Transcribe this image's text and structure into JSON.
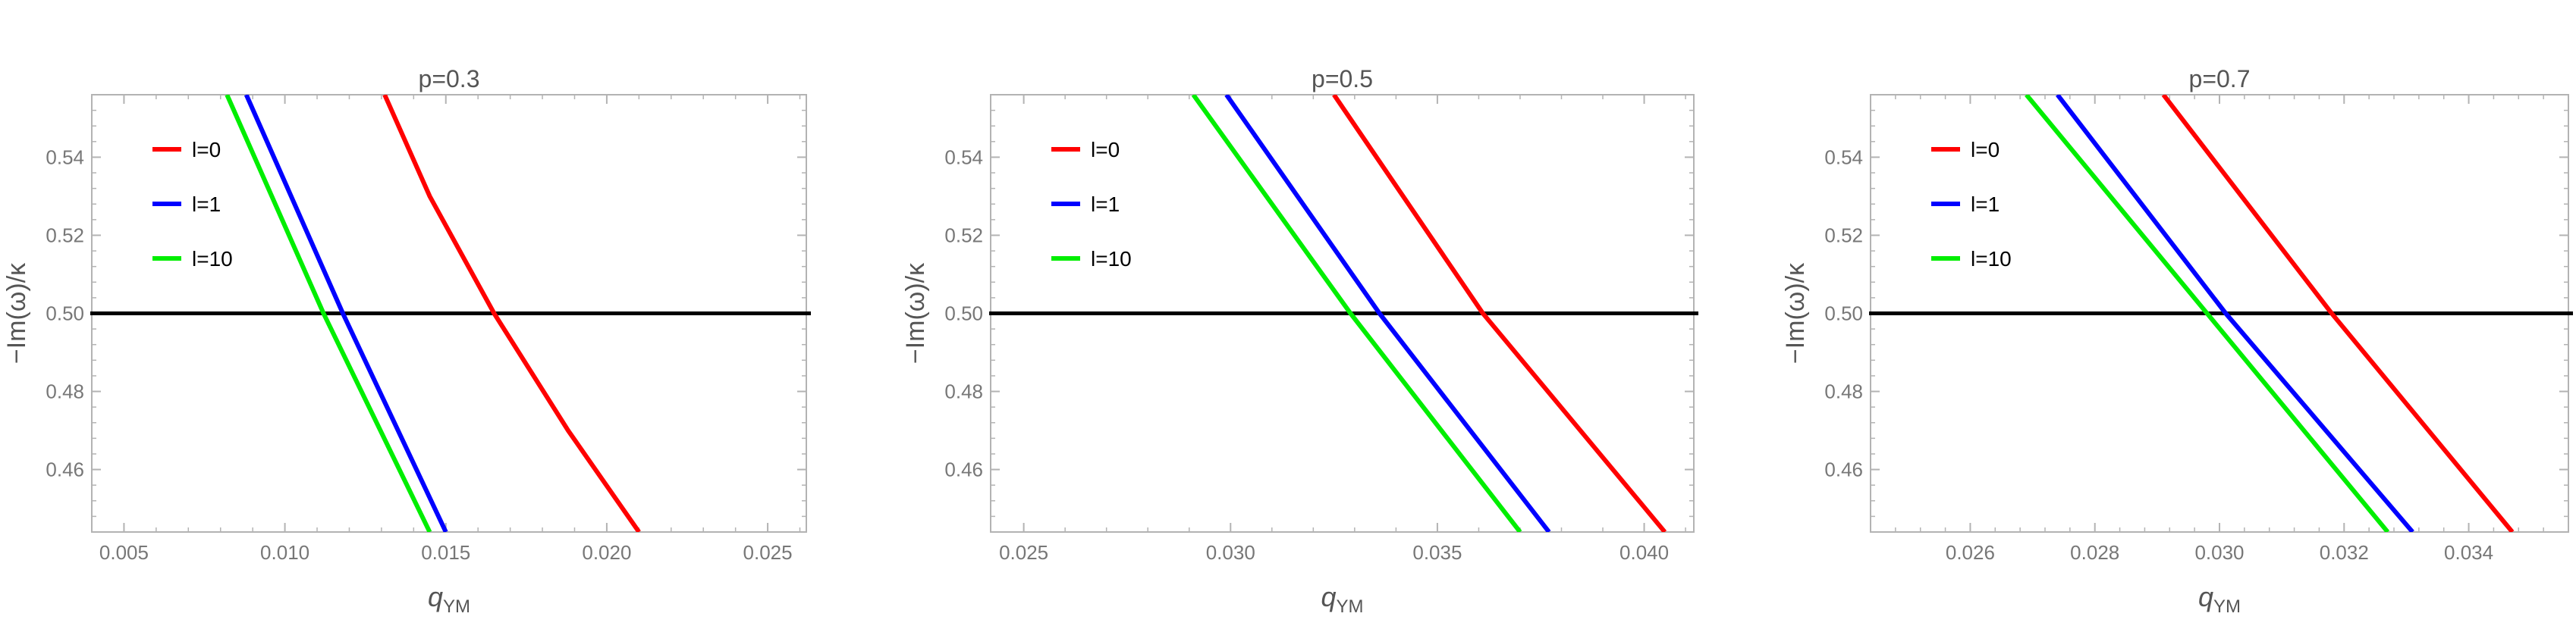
{
  "chart_data": [
    {
      "type": "line",
      "title": "p=0.3",
      "xlabel": "q",
      "xlabel_sub": "YM",
      "ylabel": "−Im(ω)/κ",
      "xlim": [
        0.004,
        0.0262
      ],
      "ylim": [
        0.444,
        0.556
      ],
      "xticks": [
        0.005,
        0.01,
        0.015,
        0.02,
        0.025
      ],
      "xtick_labels": [
        "0.005",
        "0.010",
        "0.015",
        "0.020",
        "0.025"
      ],
      "yticks": [
        0.46,
        0.48,
        0.5,
        0.52,
        0.54
      ],
      "ytick_labels": [
        "0.46",
        "0.48",
        "0.50",
        "0.52",
        "0.54"
      ],
      "grid": false,
      "legend_position": "top-left",
      "reference_line": {
        "y": 0.5,
        "color": "#000000"
      },
      "series": [
        {
          "name": "l=0",
          "color": "#ff0000",
          "x": [
            0.0131,
            0.0145,
            0.0165,
            0.0188,
            0.021
          ],
          "y": [
            0.556,
            0.53,
            0.5,
            0.47,
            0.444
          ]
        },
        {
          "name": "l=1",
          "color": "#0000ff",
          "x": [
            0.0088,
            0.0118,
            0.015
          ],
          "y": [
            0.556,
            0.5,
            0.444
          ]
        },
        {
          "name": "l=10",
          "color": "#00ee00",
          "x": [
            0.0082,
            0.0112,
            0.0145
          ],
          "y": [
            0.556,
            0.5,
            0.444
          ]
        }
      ]
    },
    {
      "type": "line",
      "title": "p=0.5",
      "xlabel": "q",
      "xlabel_sub": "YM",
      "ylabel": "−Im(ω)/κ",
      "xlim": [
        0.0242,
        0.0412
      ],
      "ylim": [
        0.444,
        0.556
      ],
      "xticks": [
        0.025,
        0.03,
        0.035,
        0.04
      ],
      "xtick_labels": [
        "0.025",
        "0.030",
        "0.035",
        "0.040"
      ],
      "yticks": [
        0.46,
        0.48,
        0.5,
        0.52,
        0.54
      ],
      "ytick_labels": [
        "0.46",
        "0.48",
        "0.50",
        "0.52",
        "0.54"
      ],
      "grid": false,
      "legend_position": "top-left",
      "reference_line": {
        "y": 0.5,
        "color": "#000000"
      },
      "series": [
        {
          "name": "l=0",
          "color": "#ff0000",
          "x": [
            0.0325,
            0.0361,
            0.0405
          ],
          "y": [
            0.556,
            0.5,
            0.444
          ]
        },
        {
          "name": "l=1",
          "color": "#0000ff",
          "x": [
            0.0299,
            0.0336,
            0.0377
          ],
          "y": [
            0.556,
            0.5,
            0.444
          ]
        },
        {
          "name": "l=10",
          "color": "#00ee00",
          "x": [
            0.0291,
            0.0329,
            0.037
          ],
          "y": [
            0.556,
            0.5,
            0.444
          ]
        }
      ]
    },
    {
      "type": "line",
      "title": "p=0.7",
      "xlabel": "q",
      "xlabel_sub": "YM",
      "ylabel": "−Im(ω)/κ",
      "xlim": [
        0.0244,
        0.0356
      ],
      "ylim": [
        0.444,
        0.556
      ],
      "xticks": [
        0.026,
        0.028,
        0.03,
        0.032,
        0.034
      ],
      "xtick_labels": [
        "0.026",
        "0.028",
        "0.030",
        "0.032",
        "0.034"
      ],
      "yticks": [
        0.46,
        0.48,
        0.5,
        0.52,
        0.54
      ],
      "ytick_labels": [
        "0.46",
        "0.48",
        "0.50",
        "0.52",
        "0.54"
      ],
      "grid": false,
      "legend_position": "top-left",
      "reference_line": {
        "y": 0.5,
        "color": "#000000"
      },
      "series": [
        {
          "name": "l=0",
          "color": "#ff0000",
          "x": [
            0.0291,
            0.0318,
            0.0347
          ],
          "y": [
            0.556,
            0.5,
            0.444
          ]
        },
        {
          "name": "l=1",
          "color": "#0000ff",
          "x": [
            0.0274,
            0.0301,
            0.0331
          ],
          "y": [
            0.556,
            0.5,
            0.444
          ]
        },
        {
          "name": "l=10",
          "color": "#00ee00",
          "x": [
            0.0269,
            0.0298,
            0.0327
          ],
          "y": [
            0.556,
            0.5,
            0.444
          ]
        }
      ]
    }
  ]
}
